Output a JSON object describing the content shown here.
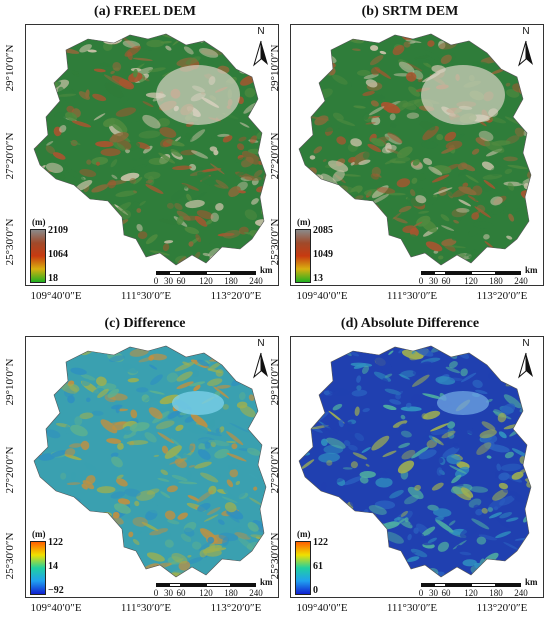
{
  "panels": [
    {
      "title": "(a) FREEL DEM",
      "legend": {
        "unit": "(m)",
        "max": "2109",
        "mid": "1064",
        "min": "18",
        "colors": [
          "#8a8a8a",
          "#a04a2a",
          "#c83a10",
          "#d8b010",
          "#20b020"
        ]
      },
      "map_colors": [
        "#2f7d3a",
        "#4f8a3f",
        "#8a6a3a",
        "#a8552f",
        "#c9c2a8"
      ]
    },
    {
      "title": "(b) SRTM DEM",
      "legend": {
        "unit": "(m)",
        "max": "2085",
        "mid": "1049",
        "min": "13",
        "colors": [
          "#8a8a8a",
          "#a04a2a",
          "#c83a10",
          "#d8b010",
          "#20b020"
        ]
      },
      "map_colors": [
        "#2f7d3a",
        "#4f8a3f",
        "#8a6a3a",
        "#a8552f",
        "#c9c2a8"
      ]
    },
    {
      "title": "(c) Difference",
      "legend": {
        "unit": "(m)",
        "max": "122",
        "mid": "14",
        "min": "−92",
        "colors": [
          "#ff6000",
          "#f0e000",
          "#20d0a0",
          "#20a0f0",
          "#1020d0"
        ]
      },
      "map_colors": [
        "#3aa0b0",
        "#5cb090",
        "#9cb050",
        "#c09040",
        "#2f90c0"
      ]
    },
    {
      "title": "(d) Absolute Difference",
      "legend": {
        "unit": "(m)",
        "max": "122",
        "mid": "61",
        "min": "0",
        "colors": [
          "#ff6000",
          "#f0e000",
          "#20d0a0",
          "#20a0f0",
          "#1020d0"
        ]
      },
      "map_colors": [
        "#2040b0",
        "#2a60c0",
        "#3090c0",
        "#50b0a0",
        "#a0b050"
      ]
    }
  ],
  "lat_labels": [
    "29°10′0″N",
    "27°20′0″N",
    "25°30′0″N"
  ],
  "lon_labels": [
    "109°40′0″E",
    "111°30′0″E",
    "113°20′0″E"
  ],
  "north_label": "N",
  "scale": {
    "ticks": [
      "0",
      "30",
      "60",
      "120",
      "180",
      "240"
    ],
    "unit": "km"
  }
}
